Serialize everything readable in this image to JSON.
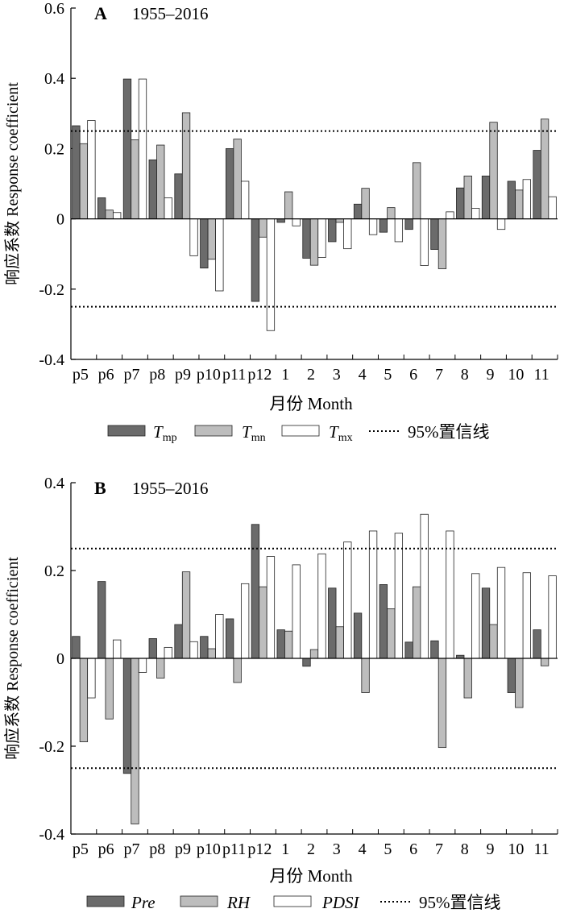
{
  "colors": {
    "dark": "#6b6b6b",
    "light": "#bdbdbd",
    "white": "#ffffff",
    "axis": "#000000"
  },
  "chart_data": [
    {
      "panel": "A",
      "type": "bar",
      "period": "1955–2016",
      "ylabel": "响应系数 Response coefficient",
      "xlabel": "月份 Month",
      "ylim": [
        -0.4,
        0.6
      ],
      "yticks": [
        "-0.4",
        "-0.2",
        "0",
        "0.2",
        "0.4",
        "0.6"
      ],
      "reference_lines": [
        0.25,
        -0.25
      ],
      "categories": [
        "p5",
        "p6",
        "p7",
        "p8",
        "p9",
        "p10",
        "p11",
        "p12",
        "1",
        "2",
        "3",
        "4",
        "5",
        "6",
        "7",
        "8",
        "9",
        "10",
        "11"
      ],
      "series": [
        {
          "name": "Tmp",
          "label_main": "T",
          "label_sub": "mp",
          "fill": "dark",
          "values": [
            0.265,
            0.06,
            0.398,
            0.168,
            0.128,
            -0.14,
            0.2,
            -0.235,
            -0.01,
            -0.112,
            -0.065,
            0.042,
            -0.038,
            -0.03,
            -0.087,
            0.088,
            0.122,
            0.107,
            0.195
          ]
        },
        {
          "name": "Tmn",
          "label_main": "T",
          "label_sub": "mn",
          "fill": "light",
          "values": [
            0.214,
            0.025,
            0.225,
            0.21,
            0.302,
            -0.115,
            0.227,
            -0.052,
            0.077,
            -0.132,
            -0.01,
            0.087,
            0.032,
            0.16,
            -0.142,
            0.122,
            0.275,
            0.082,
            0.284
          ]
        },
        {
          "name": "Tmx",
          "label_main": "T",
          "label_sub": "mx",
          "fill": "white",
          "values": [
            0.28,
            0.018,
            0.398,
            0.06,
            -0.105,
            -0.205,
            0.107,
            -0.318,
            -0.02,
            -0.11,
            -0.085,
            -0.045,
            -0.065,
            -0.133,
            0.02,
            0.03,
            -0.03,
            0.112,
            0.063
          ]
        }
      ],
      "legend": {
        "ref_label": "95%置信线"
      }
    },
    {
      "panel": "B",
      "type": "bar",
      "period": "1955–2016",
      "ylabel": "响应系数 Response coefficient",
      "xlabel": "月份 Month",
      "ylim": [
        -0.4,
        0.4
      ],
      "yticks": [
        "-0.4",
        "-0.2",
        "0",
        "0.2",
        "0.4"
      ],
      "reference_lines": [
        0.25,
        -0.25
      ],
      "categories": [
        "p5",
        "p6",
        "p7",
        "p8",
        "p9",
        "p10",
        "p11",
        "p12",
        "1",
        "2",
        "3",
        "4",
        "5",
        "6",
        "7",
        "8",
        "9",
        "10",
        "11"
      ],
      "series": [
        {
          "name": "Pre",
          "label_main": "Pre",
          "label_sub": "",
          "fill": "dark",
          "values": [
            0.05,
            0.175,
            -0.262,
            0.045,
            0.077,
            0.05,
            0.09,
            0.305,
            0.065,
            -0.018,
            0.16,
            0.103,
            0.168,
            0.037,
            0.04,
            0.007,
            0.16,
            -0.078,
            0.065
          ]
        },
        {
          "name": "RH",
          "label_main": "RH",
          "label_sub": "",
          "fill": "light",
          "values": [
            -0.19,
            -0.138,
            -0.377,
            -0.045,
            0.197,
            0.022,
            -0.055,
            0.163,
            0.062,
            0.02,
            0.072,
            -0.078,
            0.113,
            0.163,
            -0.203,
            -0.09,
            0.077,
            -0.112,
            -0.017
          ]
        },
        {
          "name": "PDSI",
          "label_main": "PDSI",
          "label_sub": "",
          "fill": "white",
          "values": [
            -0.09,
            0.042,
            -0.032,
            0.025,
            0.038,
            0.1,
            0.17,
            0.232,
            0.213,
            0.238,
            0.265,
            0.29,
            0.285,
            0.328,
            0.29,
            0.193,
            0.207,
            0.195,
            0.188
          ]
        }
      ],
      "legend": {
        "ref_label": "95%置信线"
      }
    }
  ]
}
